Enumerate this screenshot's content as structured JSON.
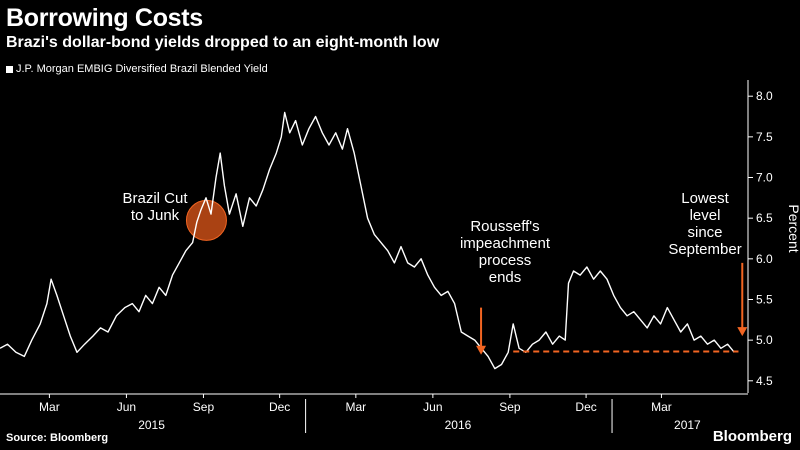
{
  "header": {
    "title": "Borrowing Costs",
    "subtitle": "Brazi's dollar-bond yields dropped to an eight-month low"
  },
  "footer": {
    "source": "Source: Bloomberg",
    "brand": "Bloomberg"
  },
  "colors": {
    "background": "#000000",
    "line": "#ffffff",
    "annotation": "#f26522",
    "axis": "#ffffff"
  },
  "chart_data": {
    "type": "line",
    "legend": "J.P. Morgan EMBIG Diversified Brazil Blended Yield",
    "legend_position": "top-left",
    "ylabel": "Percent",
    "ylim": [
      4.35,
      8.15
    ],
    "xlim": [
      "2015-01-01",
      "2017-06-10"
    ],
    "yticks": [
      "8.0",
      "7.5",
      "7.0",
      "6.5",
      "6.0",
      "5.5",
      "5.0",
      "4.5"
    ],
    "xticks": [
      {
        "date": "2015-03-01",
        "label": "Mar"
      },
      {
        "date": "2015-06-01",
        "label": "Jun"
      },
      {
        "date": "2015-09-01",
        "label": "Sep"
      },
      {
        "date": "2015-12-01",
        "label": "Dec"
      },
      {
        "date": "2016-03-01",
        "label": "Mar"
      },
      {
        "date": "2016-06-01",
        "label": "Jun"
      },
      {
        "date": "2016-09-01",
        "label": "Sep"
      },
      {
        "date": "2016-12-01",
        "label": "Dec"
      },
      {
        "date": "2017-03-01",
        "label": "Mar"
      }
    ],
    "years": [
      {
        "label": "2015",
        "date": "2015-07-01"
      },
      {
        "label": "2016",
        "date": "2016-07-01"
      },
      {
        "label": "2017",
        "date": "2017-04-01"
      }
    ],
    "year_boundaries": [
      "2016-01-01",
      "2017-01-01"
    ],
    "grid": false,
    "series": [
      {
        "name": "J.P. Morgan EMBIG Diversified Brazil Blended Yield",
        "points": [
          [
            "2015-01-01",
            4.9
          ],
          [
            "2015-01-10",
            4.95
          ],
          [
            "2015-01-20",
            4.85
          ],
          [
            "2015-01-30",
            4.8
          ],
          [
            "2015-02-08",
            5.0
          ],
          [
            "2015-02-18",
            5.2
          ],
          [
            "2015-02-26",
            5.45
          ],
          [
            "2015-03-03",
            5.75
          ],
          [
            "2015-03-10",
            5.55
          ],
          [
            "2015-03-18",
            5.3
          ],
          [
            "2015-03-26",
            5.05
          ],
          [
            "2015-04-03",
            4.85
          ],
          [
            "2015-04-12",
            4.95
          ],
          [
            "2015-04-22",
            5.05
          ],
          [
            "2015-05-01",
            5.15
          ],
          [
            "2015-05-10",
            5.1
          ],
          [
            "2015-05-20",
            5.3
          ],
          [
            "2015-05-30",
            5.4
          ],
          [
            "2015-06-08",
            5.45
          ],
          [
            "2015-06-16",
            5.35
          ],
          [
            "2015-06-24",
            5.55
          ],
          [
            "2015-07-02",
            5.45
          ],
          [
            "2015-07-10",
            5.65
          ],
          [
            "2015-07-18",
            5.55
          ],
          [
            "2015-07-26",
            5.8
          ],
          [
            "2015-08-03",
            5.95
          ],
          [
            "2015-08-11",
            6.1
          ],
          [
            "2015-08-19",
            6.2
          ],
          [
            "2015-08-24",
            6.45
          ],
          [
            "2015-08-29",
            6.6
          ],
          [
            "2015-09-04",
            6.75
          ],
          [
            "2015-09-10",
            6.55
          ],
          [
            "2015-09-16",
            7.0
          ],
          [
            "2015-09-21",
            7.3
          ],
          [
            "2015-09-26",
            6.9
          ],
          [
            "2015-10-02",
            6.55
          ],
          [
            "2015-10-10",
            6.8
          ],
          [
            "2015-10-18",
            6.4
          ],
          [
            "2015-10-26",
            6.75
          ],
          [
            "2015-11-03",
            6.65
          ],
          [
            "2015-11-11",
            6.85
          ],
          [
            "2015-11-19",
            7.1
          ],
          [
            "2015-11-27",
            7.3
          ],
          [
            "2015-12-03",
            7.5
          ],
          [
            "2015-12-07",
            7.8
          ],
          [
            "2015-12-13",
            7.55
          ],
          [
            "2015-12-20",
            7.7
          ],
          [
            "2015-12-28",
            7.4
          ],
          [
            "2016-01-05",
            7.6
          ],
          [
            "2016-01-13",
            7.75
          ],
          [
            "2016-01-21",
            7.55
          ],
          [
            "2016-01-29",
            7.4
          ],
          [
            "2016-02-06",
            7.55
          ],
          [
            "2016-02-14",
            7.35
          ],
          [
            "2016-02-20",
            7.6
          ],
          [
            "2016-02-28",
            7.3
          ],
          [
            "2016-03-07",
            6.9
          ],
          [
            "2016-03-15",
            6.5
          ],
          [
            "2016-03-23",
            6.3
          ],
          [
            "2016-03-31",
            6.2
          ],
          [
            "2016-04-08",
            6.1
          ],
          [
            "2016-04-16",
            5.95
          ],
          [
            "2016-04-24",
            6.15
          ],
          [
            "2016-05-02",
            5.95
          ],
          [
            "2016-05-10",
            5.9
          ],
          [
            "2016-05-18",
            6.0
          ],
          [
            "2016-05-26",
            5.8
          ],
          [
            "2016-06-03",
            5.65
          ],
          [
            "2016-06-11",
            5.55
          ],
          [
            "2016-06-19",
            5.6
          ],
          [
            "2016-06-27",
            5.45
          ],
          [
            "2016-07-05",
            5.1
          ],
          [
            "2016-07-13",
            5.05
          ],
          [
            "2016-07-21",
            5.0
          ],
          [
            "2016-07-29",
            4.9
          ],
          [
            "2016-08-06",
            4.8
          ],
          [
            "2016-08-14",
            4.65
          ],
          [
            "2016-08-22",
            4.7
          ],
          [
            "2016-08-30",
            4.85
          ],
          [
            "2016-09-05",
            5.2
          ],
          [
            "2016-09-12",
            4.9
          ],
          [
            "2016-09-20",
            4.85
          ],
          [
            "2016-09-28",
            4.95
          ],
          [
            "2016-10-06",
            5.0
          ],
          [
            "2016-10-14",
            5.1
          ],
          [
            "2016-10-22",
            4.95
          ],
          [
            "2016-10-30",
            5.05
          ],
          [
            "2016-11-06",
            5.0
          ],
          [
            "2016-11-10",
            5.7
          ],
          [
            "2016-11-16",
            5.85
          ],
          [
            "2016-11-24",
            5.8
          ],
          [
            "2016-12-02",
            5.9
          ],
          [
            "2016-12-10",
            5.75
          ],
          [
            "2016-12-18",
            5.85
          ],
          [
            "2016-12-26",
            5.75
          ],
          [
            "2017-01-03",
            5.55
          ],
          [
            "2017-01-11",
            5.4
          ],
          [
            "2017-01-19",
            5.3
          ],
          [
            "2017-01-27",
            5.35
          ],
          [
            "2017-02-04",
            5.25
          ],
          [
            "2017-02-12",
            5.15
          ],
          [
            "2017-02-20",
            5.3
          ],
          [
            "2017-02-28",
            5.2
          ],
          [
            "2017-03-08",
            5.4
          ],
          [
            "2017-03-16",
            5.25
          ],
          [
            "2017-03-24",
            5.1
          ],
          [
            "2017-04-01",
            5.2
          ],
          [
            "2017-04-09",
            5.0
          ],
          [
            "2017-04-17",
            5.05
          ],
          [
            "2017-04-25",
            4.95
          ],
          [
            "2017-05-03",
            5.0
          ],
          [
            "2017-05-11",
            4.9
          ],
          [
            "2017-05-19",
            4.95
          ],
          [
            "2017-05-27",
            4.85
          ]
        ]
      }
    ],
    "annotations": [
      {
        "name": "junk-annotation",
        "text": [
          "Brazil Cut",
          "to Junk"
        ],
        "marker_date": "2015-09-01",
        "marker_value": 6.35
      },
      {
        "name": "impeachment-annotation",
        "text": [
          "Rousseff's",
          "impeachment",
          "process",
          "ends"
        ],
        "arrow_date": "2016-08-31",
        "arrow_from_value": 5.4,
        "arrow_to_value": 4.82
      },
      {
        "name": "lowest-annotation",
        "text": [
          "Lowest",
          "level",
          "since",
          "September"
        ],
        "arrow_date": "2017-05-27",
        "arrow_from_value": 5.95,
        "arrow_to_value": 5.05
      }
    ],
    "reference_line": {
      "from_date": "2016-09-05",
      "to_date": "2017-06-01",
      "value": 4.86,
      "style": "dashed"
    }
  }
}
